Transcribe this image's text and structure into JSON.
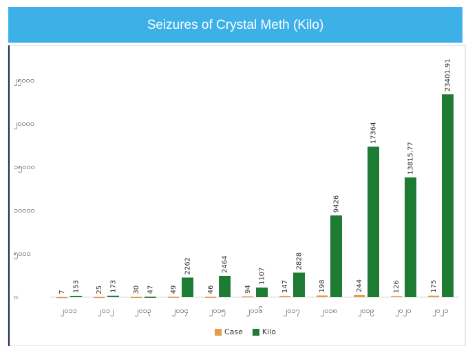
{
  "chart_data": {
    "type": "bar",
    "title": "Seizures of Crystal Meth (Kilo)",
    "categories": [
      "၂၀၁၁",
      "၂၀၁၂",
      "၂၀၁၃",
      "၂၀၁၄",
      "၂၀၁၅",
      "၂၀၁၆",
      "၂၀၁၇",
      "၂၀၁၈",
      "၂၀၁၉",
      "၂၀၂၀",
      "၂၀၂၁"
    ],
    "series": [
      {
        "name": "Case",
        "color": "#e59a4c",
        "values": [
          7,
          25,
          30,
          49,
          46,
          94,
          147,
          198,
          244,
          126,
          175
        ]
      },
      {
        "name": "Kilo",
        "color": "#1e7b34",
        "values": [
          153,
          173,
          47,
          2262,
          2464,
          1107,
          2828,
          9426,
          17364,
          13815.77,
          23401.91
        ]
      }
    ],
    "ylim": [
      0,
      28000
    ],
    "yticks": [
      {
        "value": 0,
        "label": "၀"
      },
      {
        "value": 5000,
        "label": "၅၀၀၀"
      },
      {
        "value": 10000,
        "label": "၁၀၀၀၀"
      },
      {
        "value": 15000,
        "label": "၁၅၀၀၀"
      },
      {
        "value": 20000,
        "label": "၂၀၀၀၀"
      },
      {
        "value": 25000,
        "label": "၂၅၀၀၀"
      }
    ],
    "legend": "bottom"
  }
}
